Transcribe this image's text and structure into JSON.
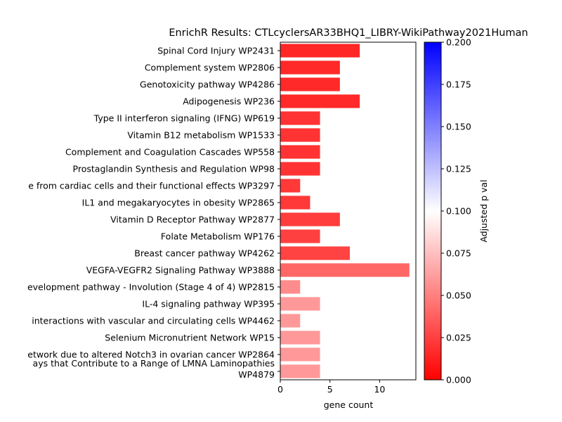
{
  "chart_data": {
    "type": "bar",
    "orientation": "horizontal",
    "title": "EnrichR Results: CTLcyclersAR33BHQ1_LIBRY-WikiPathway2021Human",
    "xlabel": "gene count",
    "ylabel": "",
    "xlim": [
      0,
      13.65
    ],
    "xticks": [
      0,
      5,
      10
    ],
    "grid": false,
    "categories": [
      "Spinal Cord Injury WP2431",
      "Complement system WP2806",
      "Genotoxicity pathway WP4286",
      "Adipogenesis WP236",
      "Type II interferon signaling (IFNG) WP619",
      "Vitamin B12 metabolism WP1533",
      "Complement and Coagulation Cascades WP558",
      "Prostaglandin Synthesis and Regulation WP98",
      "e from cardiac cells and their functional effects WP3297",
      "IL1 and megakaryocytes in obesity WP2865",
      "Vitamin D Receptor Pathway WP2877",
      "Folate Metabolism WP176",
      "Breast cancer pathway WP4262",
      "VEGFA-VEGFR2 Signaling Pathway WP3888",
      "evelopment pathway - Involution (Stage 4 of 4) WP2815",
      "IL-4 signaling pathway WP395",
      " interactions with vascular and circulating cells WP4462",
      "Selenium Micronutrient Network WP15",
      "etwork due to altered Notch3 in ovarian cancer WP2864",
      [
        "ays that Contribute to a Range of LMNA Laminopathies",
        "WP4879"
      ]
    ],
    "values": [
      8,
      6,
      6,
      8,
      4,
      4,
      4,
      4,
      2,
      3,
      6,
      4,
      7,
      13,
      2,
      4,
      2,
      4,
      4,
      4
    ],
    "adjusted_p": [
      0.015,
      0.016,
      0.016,
      0.016,
      0.02,
      0.02,
      0.02,
      0.02,
      0.022,
      0.022,
      0.024,
      0.025,
      0.026,
      0.04,
      0.055,
      0.06,
      0.06,
      0.06,
      0.06,
      0.06
    ],
    "colorbar": {
      "label": "Adjusted p val",
      "range": [
        0.0,
        0.2
      ],
      "ticks": [
        "0.000",
        "0.025",
        "0.050",
        "0.075",
        "0.100",
        "0.125",
        "0.150",
        "0.175",
        "0.200"
      ],
      "colormap": [
        "#ff0000",
        "#ffffff",
        "#0000ff"
      ]
    }
  }
}
